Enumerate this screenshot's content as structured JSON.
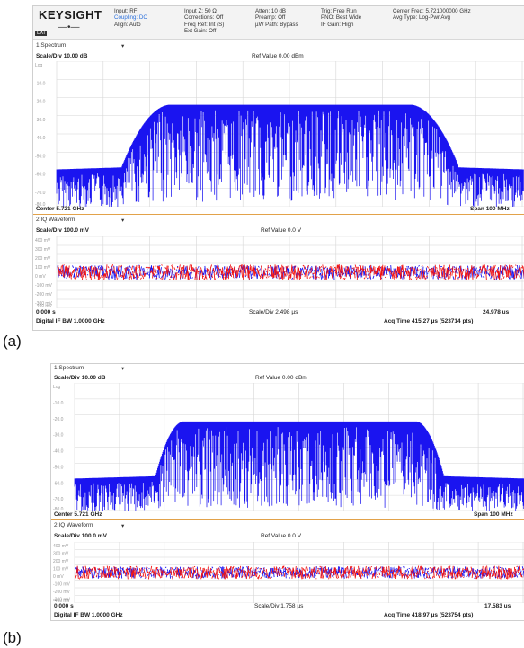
{
  "panels": [
    {
      "label": "(a)",
      "instrument": {
        "brand": "KEYSIGHT",
        "status_col1": [
          "Input: RF",
          "Coupling: DC",
          "Align: Auto"
        ],
        "status_col2": [
          "Input Z: 50 Ω",
          "Corrections: Off",
          "Freq Ref: Int (S)",
          "Ext Gain: Off"
        ],
        "status_col3": [
          "Atten: 10 dB",
          "Preamp: Off",
          "µW Path: Bypass"
        ],
        "status_col4": [
          "Trig: Free Run",
          "PNO: Best Wide",
          "IF Gain: High"
        ],
        "status_col5": [
          "Center Freq: 5.721000000 GHz",
          "Avg Type: Log-Pwr Avg"
        ],
        "lxi": "LXI"
      },
      "spectrum": {
        "title": "1 Spectrum",
        "scale": "Scale/Div 10.00 dB",
        "ref": "Ref Value 0.00 dBm",
        "y_labels": [
          "Log",
          "-10.0",
          "-20.0",
          "-30.0",
          "-40.0",
          "-50.0",
          "-60.0",
          "-70.0",
          "-80.0"
        ],
        "center": "Center 5.721 GHz",
        "span": "Span 100 MHz"
      },
      "iq": {
        "title": "2 IQ Waveform",
        "scale": "Scale/Div 100.0 mV",
        "ref": "Ref Value 0.0 V",
        "y_labels": [
          "400 mV",
          "300 mV",
          "200 mV",
          "100 mV",
          "0 mV",
          "-100 mV",
          "-200 mV",
          "-300 mV",
          "-400 mV"
        ],
        "start": "0.000 s",
        "scalediv": "Scale/Div 2.498 µs",
        "end": "24.978 us",
        "ifbw": "Digital IF BW 1.0000 GHz",
        "acq": "Acq Time 415.27 µs (523714 pts)"
      }
    },
    {
      "label": "(b)",
      "spectrum": {
        "title": "1 Spectrum",
        "scale": "Scale/Div 10.00 dB",
        "ref": "Ref Value 0.00 dBm",
        "y_labels": [
          "Log",
          "-10.0",
          "-20.0",
          "-30.0",
          "-40.0",
          "-50.0",
          "-60.0",
          "-70.0",
          "-80.0"
        ],
        "center": "Center 5.721 GHz",
        "span": "Span 100 MHz"
      },
      "iq": {
        "title": "2 IQ Waveform",
        "scale": "Scale/Div 100.0 mV",
        "ref": "Ref Value 0.0 V",
        "y_labels": [
          "400 mV",
          "300 mV",
          "200 mV",
          "100 mV",
          "0 mV",
          "-100 mV",
          "-200 mV",
          "-300 mV",
          "-400 mV"
        ],
        "start": "0.000 s",
        "scalediv": "Scale/Div 1.758 µs",
        "end": "17.583 us",
        "ifbw": "Digital IF BW 1.0000 GHz",
        "acq": "Acq Time 418.97 µs (523754 pts)"
      }
    }
  ],
  "colors": {
    "trace_blue": "#1a14f0",
    "trace_red": "#f01414",
    "grid": "#d6d6d6",
    "separator": "#e2a24a"
  }
}
